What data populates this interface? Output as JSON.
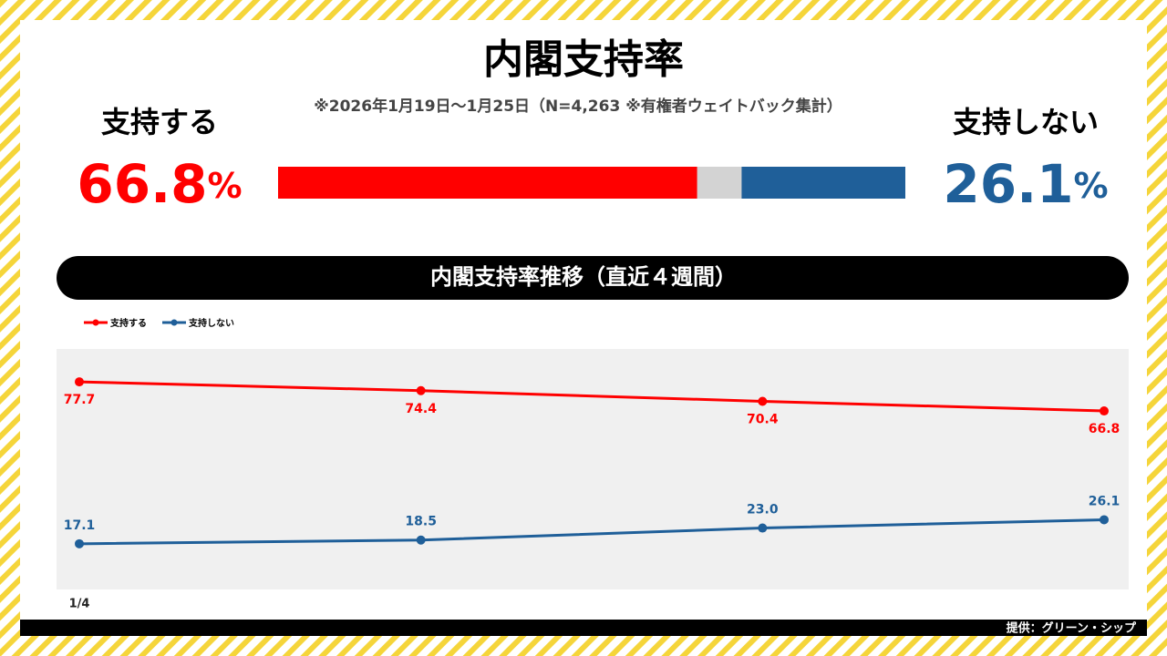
{
  "header": {
    "title": "内閣支持率",
    "subtitle": "※2026年1月19日〜1月25日（N=4,263 ※有権者ウェイトバック集計）"
  },
  "summary": {
    "xlim": [
      0,
      100
    ],
    "support": {
      "label": "支持する",
      "value": 66.8,
      "unit": "%",
      "color": "#ff0000"
    },
    "nonsupport": {
      "label": "支持しない",
      "value": 26.1,
      "unit": "%",
      "color": "#1f5f99"
    },
    "remainder_color": "#d3d3d3"
  },
  "chart_data": {
    "type": "line",
    "title": "内閣支持率推移（直近４週間）",
    "categories": [
      "1/4",
      null,
      null,
      null
    ],
    "series": [
      {
        "name": "支持する",
        "color": "#ff0000",
        "values": [
          77.7,
          74.4,
          70.4,
          66.8
        ],
        "value_labels": [
          "77.7",
          "74.4",
          "70.4",
          "66.8"
        ]
      },
      {
        "name": "支持しない",
        "color": "#1f5f99",
        "values": [
          17.1,
          18.5,
          23.0,
          26.1
        ],
        "value_labels": [
          "17.1",
          "18.5",
          "23.0",
          "26.1"
        ]
      }
    ],
    "ylim": [
      0,
      90
    ],
    "grid": false
  },
  "footer": "提供：グリーン・シップ"
}
